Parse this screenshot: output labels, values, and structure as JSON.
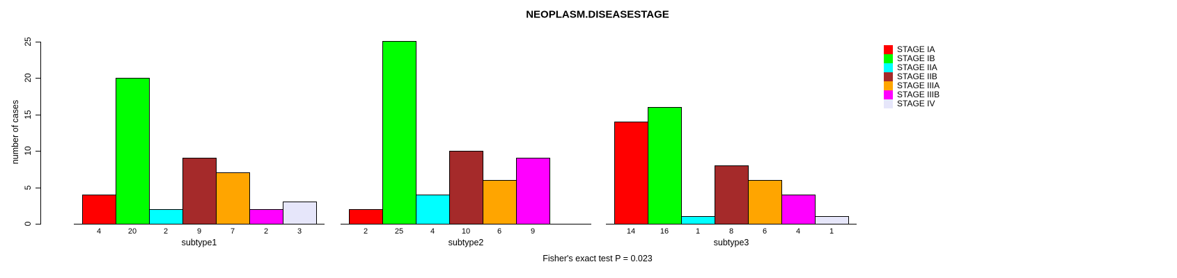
{
  "chart_data": {
    "type": "bar",
    "title": "NEOPLASM.DISEASESTAGE",
    "ylabel": "number of cases",
    "xlabel": "",
    "ylim": [
      0,
      25
    ],
    "yticks": [
      0,
      5,
      10,
      15,
      20,
      25
    ],
    "grid": false,
    "legend_position": "right",
    "caption": "Fisher's exact test P = 0.023",
    "series": [
      {
        "name": "STAGE IA",
        "color": "#FF0000"
      },
      {
        "name": "STAGE IB",
        "color": "#00FF00"
      },
      {
        "name": "STAGE IIA",
        "color": "#00FFFF"
      },
      {
        "name": "STAGE IIB",
        "color": "#A52A2A"
      },
      {
        "name": "STAGE IIIA",
        "color": "#FFA500"
      },
      {
        "name": "STAGE IIIB",
        "color": "#FF00FF"
      },
      {
        "name": "STAGE IV",
        "color": "#E6E6FA"
      }
    ],
    "groups": [
      {
        "label": "subtype1",
        "values": [
          4,
          20,
          2,
          9,
          7,
          2,
          3
        ]
      },
      {
        "label": "subtype2",
        "values": [
          2,
          25,
          4,
          10,
          6,
          9,
          0
        ]
      },
      {
        "label": "subtype3",
        "values": [
          14,
          16,
          1,
          8,
          6,
          4,
          1
        ]
      }
    ],
    "colors": {
      "axis": "#000000",
      "bar_border": "#000000",
      "text": "#000000",
      "background": "#FFFFFF"
    }
  }
}
